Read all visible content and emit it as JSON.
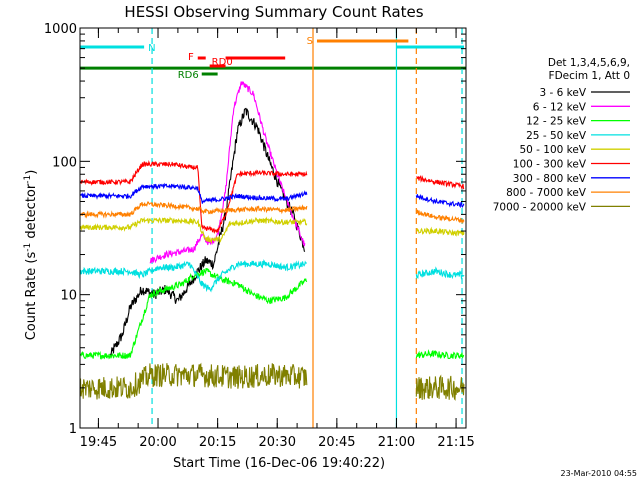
{
  "chart_data": {
    "type": "line",
    "title": "HESSI Observing Summary Count Rates",
    "xlabel": "Start Time (16-Dec-06 19:40:22)",
    "ylabel": "Count Rate (s⁻¹ detector⁻¹)",
    "ylabel_main": "Count Rate (s",
    "ylabel_sup1": "-1",
    "ylabel_mid": " detector",
    "ylabel_sup2": "-1",
    "ylabel_end": ")",
    "yscale": "log",
    "ylim": [
      1,
      1000
    ],
    "xlim": [
      "19:40:22",
      "21:17:30"
    ],
    "x_ticks": [
      "19:45",
      "20:00",
      "20:15",
      "20:30",
      "20:45",
      "21:00",
      "21:15"
    ],
    "y_ticks": [
      "1",
      "10",
      "100",
      "1000"
    ],
    "grid": false,
    "legend_position": "right",
    "legend_header": [
      "Det 1,3,4,5,6,9,",
      "FDecim 1, Att 0"
    ],
    "footer_date": "23-Mar-2010 04:55",
    "gaps": [
      [
        "19:53:00",
        "19:58:00"
      ],
      [
        "20:38:00",
        "21:05:00"
      ]
    ],
    "attenuator_markers": [
      {
        "label": "N",
        "color": "#00e0e0",
        "segments": [
          [
            "19:40:30",
            "19:56:30"
          ],
          [
            "21:00:00",
            "21:17:00"
          ]
        ]
      },
      {
        "label": "F",
        "color": "#ff0000",
        "segments": [
          [
            "20:10:00",
            "20:12:00"
          ],
          [
            "20:17:00",
            "20:32:00"
          ]
        ]
      },
      {
        "label": "RD0",
        "color": "#ff0000",
        "segments": [
          [
            "20:13:00",
            "20:17:00"
          ]
        ]
      },
      {
        "label": "RD6",
        "color": "#008000",
        "segments": [
          [
            "20:11:00",
            "20:15:00"
          ]
        ]
      },
      {
        "label": "S",
        "color": "#ff8000",
        "segments": [
          [
            "20:40:00",
            "21:03:00"
          ]
        ]
      }
    ],
    "reference_lines": [
      {
        "name": "det-line",
        "color": "#008000",
        "y": 500
      }
    ],
    "vlines": [
      {
        "x": "19:58:30",
        "color": "#00e0e0",
        "style": "dashed"
      },
      {
        "x": "20:39:00",
        "color": "#ff8000",
        "style": "solid"
      },
      {
        "x": "21:00:00",
        "color": "#00e0e0",
        "style": "solid"
      },
      {
        "x": "21:05:00",
        "color": "#ff8000",
        "style": "dashed"
      },
      {
        "x": "21:16:30",
        "color": "#00e0e0",
        "style": "dashed"
      }
    ],
    "series": [
      {
        "name": "3 - 6 keV",
        "color": "#000000",
        "points": [
          [
            "19:48:00",
            3.5
          ],
          [
            "19:51:00",
            5
          ],
          [
            "19:53:00",
            8
          ],
          [
            "19:56:00",
            11
          ],
          [
            "19:59:00",
            10
          ],
          [
            "20:02:00",
            11
          ],
          [
            "20:05:00",
            9
          ],
          [
            "20:08:00",
            12
          ],
          [
            "20:10:00",
            15
          ],
          [
            "20:12:00",
            18
          ],
          [
            "20:14:00",
            17
          ],
          [
            "20:17:00",
            40
          ],
          [
            "20:20:00",
            170
          ],
          [
            "20:22:00",
            240
          ],
          [
            "20:25:00",
            180
          ],
          [
            "20:28:00",
            100
          ],
          [
            "20:31:00",
            60
          ],
          [
            "20:34:00",
            40
          ],
          [
            "20:37:00",
            22
          ]
        ],
        "after_gap": []
      },
      {
        "name": "6 - 12 keV",
        "color": "#ff00ff",
        "points": [
          [
            "19:58:00",
            18
          ],
          [
            "20:02:00",
            20
          ],
          [
            "20:06:00",
            21
          ],
          [
            "20:09:00",
            22
          ],
          [
            "20:11:00",
            28
          ],
          [
            "20:13:00",
            24
          ],
          [
            "20:15:00",
            28
          ],
          [
            "20:17:00",
            60
          ],
          [
            "20:19:00",
            250
          ],
          [
            "20:21:00",
            390
          ],
          [
            "20:24:00",
            320
          ],
          [
            "20:27:00",
            150
          ],
          [
            "20:30:00",
            80
          ],
          [
            "20:33:00",
            45
          ],
          [
            "20:37:00",
            23
          ]
        ],
        "after_gap": []
      },
      {
        "name": "12 - 25 keV",
        "color": "#00ff00",
        "points": [
          [
            "19:40:30",
            3.5
          ],
          [
            "19:53:00",
            3.5
          ],
          [
            "19:58:00",
            10
          ],
          [
            "20:02:00",
            11
          ],
          [
            "20:06:00",
            12
          ],
          [
            "20:09:00",
            14
          ],
          [
            "20:12:00",
            15
          ],
          [
            "20:16:00",
            13
          ],
          [
            "20:20:00",
            12
          ],
          [
            "20:24:00",
            10
          ],
          [
            "20:28:00",
            9
          ],
          [
            "20:32:00",
            9.5
          ],
          [
            "20:36:00",
            12
          ],
          [
            "20:37:30",
            13
          ]
        ],
        "after_gap": [
          [
            "21:05:00",
            3.5
          ],
          [
            "21:09:00",
            3.6
          ],
          [
            "21:13:00",
            3.5
          ],
          [
            "21:17:00",
            3.5
          ]
        ]
      },
      {
        "name": "25 - 50 keV",
        "color": "#00e0e0",
        "points": [
          [
            "19:40:30",
            15
          ],
          [
            "19:53:00",
            15
          ],
          [
            "19:56:00",
            14
          ],
          [
            "20:00:00",
            16
          ],
          [
            "20:04:00",
            16
          ],
          [
            "20:08:00",
            17
          ],
          [
            "20:11:00",
            12
          ],
          [
            "20:13:00",
            11
          ],
          [
            "20:16:00",
            14
          ],
          [
            "20:20:00",
            17
          ],
          [
            "20:24:00",
            17
          ],
          [
            "20:28:00",
            17
          ],
          [
            "20:32:00",
            16
          ],
          [
            "20:37:30",
            17
          ]
        ],
        "after_gap": [
          [
            "21:05:00",
            14
          ],
          [
            "21:10:00",
            15
          ],
          [
            "21:14:00",
            14
          ],
          [
            "21:17:00",
            14
          ]
        ]
      },
      {
        "name": "50 - 100 keV",
        "color": "#d0d000",
        "points": [
          [
            "19:40:30",
            32
          ],
          [
            "19:53:00",
            32
          ],
          [
            "19:56:00",
            36
          ],
          [
            "20:05:00",
            36
          ],
          [
            "20:10:00",
            35
          ],
          [
            "20:12:00",
            26
          ],
          [
            "20:16:00",
            26
          ],
          [
            "20:18:00",
            34
          ],
          [
            "20:25:00",
            36
          ],
          [
            "20:32:00",
            35
          ],
          [
            "20:37:30",
            35
          ]
        ],
        "after_gap": [
          [
            "21:05:00",
            30
          ],
          [
            "21:10:00",
            30
          ],
          [
            "21:14:00",
            29
          ],
          [
            "21:17:00",
            29
          ]
        ]
      },
      {
        "name": "100 - 300 keV",
        "color": "#ff0000",
        "points": [
          [
            "19:40:30",
            70
          ],
          [
            "19:53:00",
            70
          ],
          [
            "19:56:00",
            95
          ],
          [
            "20:04:00",
            95
          ],
          [
            "20:08:00",
            90
          ],
          [
            "20:10:00",
            90
          ],
          [
            "20:11:00",
            32
          ],
          [
            "20:15:00",
            30
          ],
          [
            "20:17:00",
            40
          ],
          [
            "20:20:00",
            80
          ],
          [
            "20:25:00",
            82
          ],
          [
            "20:32:00",
            80
          ],
          [
            "20:37:30",
            80
          ]
        ],
        "after_gap": [
          [
            "21:05:00",
            75
          ],
          [
            "21:10:00",
            70
          ],
          [
            "21:14:00",
            67
          ],
          [
            "21:17:00",
            65
          ]
        ]
      },
      {
        "name": "300 - 800 keV",
        "color": "#0000ff",
        "points": [
          [
            "19:40:30",
            55
          ],
          [
            "19:53:00",
            55
          ],
          [
            "19:56:00",
            65
          ],
          [
            "20:05:00",
            65
          ],
          [
            "20:10:00",
            63
          ],
          [
            "20:11:00",
            50
          ],
          [
            "20:16:00",
            52
          ],
          [
            "20:20:00",
            55
          ],
          [
            "20:26:00",
            53
          ],
          [
            "20:32:00",
            52
          ],
          [
            "20:37:30",
            58
          ]
        ],
        "after_gap": [
          [
            "21:05:00",
            55
          ],
          [
            "21:10:00",
            50
          ],
          [
            "21:14:00",
            48
          ],
          [
            "21:17:00",
            47
          ]
        ]
      },
      {
        "name": "800 - 7000 keV",
        "color": "#ff8000",
        "points": [
          [
            "19:40:30",
            40
          ],
          [
            "19:53:00",
            40
          ],
          [
            "19:56:00",
            48
          ],
          [
            "20:05:00",
            46
          ],
          [
            "20:10:00",
            44
          ],
          [
            "20:12:00",
            42
          ],
          [
            "20:18:00",
            43
          ],
          [
            "20:25:00",
            44
          ],
          [
            "20:32:00",
            43
          ],
          [
            "20:37:30",
            45
          ]
        ],
        "after_gap": [
          [
            "21:05:00",
            42
          ],
          [
            "21:10:00",
            38
          ],
          [
            "21:14:00",
            37
          ],
          [
            "21:17:00",
            36
          ]
        ]
      },
      {
        "name": "7000 - 20000 keV",
        "color": "#808000",
        "points": [
          [
            "19:40:30",
            2
          ],
          [
            "19:53:00",
            2
          ],
          [
            "19:58:00",
            2.5
          ],
          [
            "20:10:00",
            2.5
          ],
          [
            "20:20:00",
            2.4
          ],
          [
            "20:30:00",
            2.5
          ],
          [
            "20:37:30",
            2.4
          ]
        ],
        "after_gap": [
          [
            "21:05:00",
            2
          ],
          [
            "21:10:00",
            2
          ],
          [
            "21:14:00",
            2
          ],
          [
            "21:17:00",
            2
          ]
        ]
      }
    ]
  }
}
